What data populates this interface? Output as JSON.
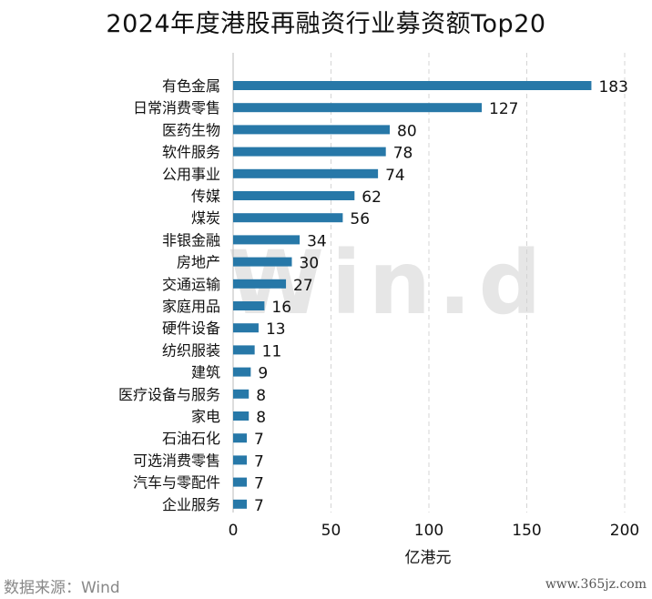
{
  "chart_data": {
    "type": "bar",
    "orientation": "horizontal",
    "title": "2024年度港股再融资行业募资额Top20",
    "xlabel": "亿港元",
    "ylabel": "",
    "xlim": [
      0,
      200
    ],
    "xticks": [
      0,
      50,
      100,
      150,
      200
    ],
    "grid": "vertical dashed",
    "bar_color": "#2778a8",
    "categories": [
      "有色金属",
      "日常消费零售",
      "医药生物",
      "软件服务",
      "公用事业",
      "传媒",
      "煤炭",
      "非银金融",
      "房地产",
      "交通运输",
      "家庭用品",
      "硬件设备",
      "纺织服装",
      "建筑",
      "医疗设备与服务",
      "家电",
      "石油石化",
      "可选消费零售",
      "汽车与零配件",
      "企业服务"
    ],
    "values": [
      183,
      127,
      80,
      78,
      74,
      62,
      56,
      34,
      30,
      27,
      16,
      13,
      11,
      9,
      8,
      8,
      7,
      7,
      7,
      7
    ]
  },
  "watermark": "Win.d",
  "source": "数据来源：Wind",
  "site": "www.365jz.com"
}
